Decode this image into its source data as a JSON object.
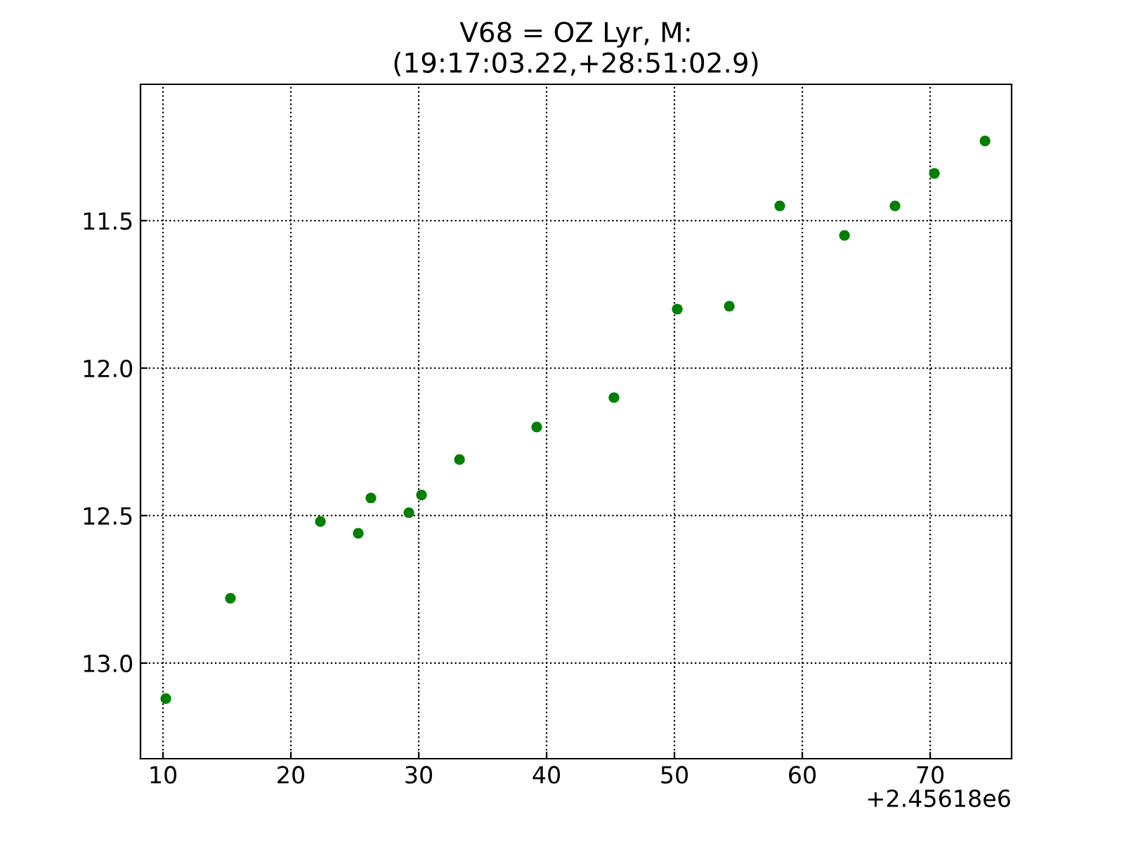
{
  "chart_data": {
    "type": "scatter",
    "title": "V68 = OZ Lyr, M:\n(19:17:03.22,+28:51:02.9)",
    "x": [
      10.22,
      15.27,
      22.31,
      25.27,
      26.26,
      29.23,
      30.22,
      33.19,
      39.23,
      45.27,
      50.22,
      54.29,
      58.24,
      63.3,
      67.25,
      70.33,
      74.29
    ],
    "series": [
      {
        "color": "#008000",
        "values": [
          13.12,
          12.78,
          12.52,
          12.56,
          12.44,
          12.49,
          12.43,
          12.31,
          12.2,
          12.1,
          11.8,
          11.79,
          11.45,
          11.55,
          11.45,
          11.34,
          11.23
        ]
      }
    ],
    "xlim": [
      8.24,
      76.37
    ],
    "xticks": [
      10,
      20,
      30,
      40,
      50,
      60,
      70
    ],
    "ylim": [
      13.324,
      11.038
    ],
    "yticks": [
      11.5,
      {
        "value": 12,
        "label": "12.0"
      },
      12.5,
      {
        "value": 13,
        "label": "13.0"
      }
    ],
    "grid": true,
    "marker": "circle",
    "annotations": [
      "+2.45618e6"
    ]
  }
}
